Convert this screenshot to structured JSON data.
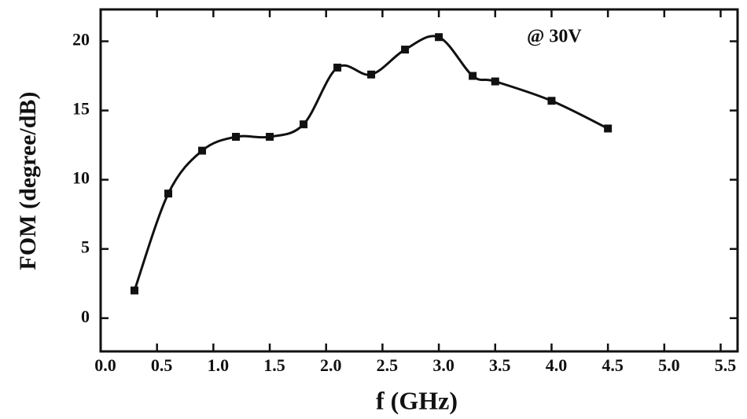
{
  "chart_data": {
    "type": "line",
    "xlabel": "f (GHz)",
    "ylabel": "FOM (degree/dB)",
    "annotation": "@ 30V",
    "x": [
      0.3,
      0.6,
      0.9,
      1.2,
      1.5,
      1.8,
      2.1,
      2.4,
      2.7,
      3.0,
      3.3,
      3.5,
      4.0,
      4.5
    ],
    "series": [
      {
        "color": "#111111",
        "values": [
          2,
          9,
          12.1,
          13.1,
          13.1,
          14,
          18.1,
          17.6,
          19.4,
          20.3,
          17.5,
          17.1,
          15.7,
          13.7
        ]
      }
    ],
    "xlim": [
      0,
      5.65
    ],
    "ylim": [
      -2.4,
      22.3
    ],
    "xticks": [
      {
        "value": 0,
        "label": "0.0"
      },
      0.5,
      {
        "value": 1,
        "label": "1.0"
      },
      1.5,
      {
        "value": 2,
        "label": "2.0"
      },
      2.5,
      {
        "value": 3,
        "label": "3.0"
      },
      3.5,
      {
        "value": 4,
        "label": "4.0"
      },
      4.5,
      {
        "value": 5,
        "label": "5.0"
      },
      5.5
    ],
    "yticks": [
      0,
      5,
      10,
      15,
      20
    ]
  }
}
